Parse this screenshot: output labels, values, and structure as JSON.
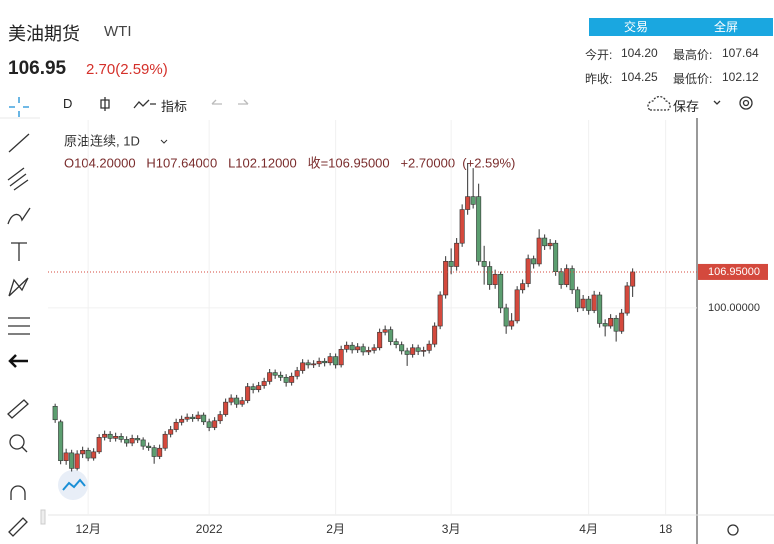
{
  "header": {
    "title": "美油期货",
    "symbol": "WTI",
    "price": "106.95",
    "change": "2.70(2.59%)",
    "buttons": [
      "交易",
      "全屏"
    ],
    "stats": [
      [
        "今开:",
        "104.20"
      ],
      [
        "最高价:",
        "107.64"
      ],
      [
        "昨收:",
        "104.25"
      ],
      [
        "最低价:",
        "102.12"
      ]
    ]
  },
  "toolbar": {
    "interval": "D",
    "indicators": "指标",
    "save": "保存"
  },
  "chart_data": {
    "type": "candlestick",
    "series_name": "原油连续, 1D",
    "ohlc_text": "O104.20000   H107.64000   L102.12000   收=106.95000   +2.70000  (+2.59%)",
    "up_color": "#d4493d",
    "down_color": "#5c9e70",
    "open": [
      81.0,
      78.0,
      70.5,
      72.0,
      69.0,
      71.8,
      72.5,
      71.0,
      72.2,
      75.0,
      75.6,
      74.8,
      75.2,
      74.6,
      73.9,
      74.8,
      74.5,
      73.3,
      73.0,
      71.3,
      72.9,
      75.6,
      76.5,
      77.9,
      78.5,
      78.9,
      78.6,
      79.3,
      78.0,
      76.9,
      78.2,
      79.4,
      81.8,
      82.6,
      81.4,
      82.1,
      84.8,
      84.2,
      85.0,
      85.8,
      87.5,
      87.0,
      86.6,
      85.6,
      86.8,
      87.9,
      89.4,
      89.0,
      89.2,
      89.7,
      89.4,
      90.6,
      89.0,
      92.0,
      92.8,
      91.9,
      92.5,
      91.5,
      91.8,
      92.3,
      95.3,
      95.8,
      93.5,
      92.9,
      91.7,
      91.0,
      92.3,
      91.6,
      91.8,
      93.0,
      96.5,
      102.5,
      109.0,
      108.0,
      112.5,
      119.0,
      121.5,
      121.5,
      109.0,
      108.0,
      104.5,
      106.5,
      100.0,
      96.5,
      97.5,
      103.5,
      104.7,
      109.5,
      108.5,
      113.5,
      112.0,
      112.5,
      107.0,
      104.5,
      107.6,
      103.5,
      100.0,
      101.7,
      99.5,
      102.5,
      97.0,
      96.5,
      98.0,
      95.5,
      99.0,
      104.2
    ],
    "high": [
      81.5,
      78.4,
      72.8,
      72.6,
      72.5,
      73.2,
      73.0,
      72.9,
      75.6,
      76.3,
      76.2,
      75.9,
      75.8,
      75.2,
      75.5,
      75.4,
      75.0,
      74.0,
      73.5,
      73.6,
      76.2,
      77.2,
      78.6,
      79.2,
      79.6,
      79.5,
      80.0,
      79.8,
      78.6,
      78.9,
      80.1,
      82.5,
      83.3,
      83.2,
      82.8,
      85.5,
      85.4,
      85.7,
      86.5,
      88.2,
      88.1,
      87.7,
      87.2,
      87.5,
      88.6,
      90.1,
      90.0,
      89.9,
      90.4,
      90.3,
      91.3,
      91.2,
      92.7,
      93.5,
      93.4,
      93.2,
      93.1,
      92.5,
      93.0,
      96.0,
      96.6,
      96.4,
      94.1,
      93.5,
      92.3,
      93.0,
      92.9,
      92.5,
      93.7,
      97.2,
      103.2,
      110.0,
      111.5,
      113.5,
      120.0,
      128.0,
      127.0,
      124.0,
      112.0,
      109.0,
      107.4,
      107.0,
      100.8,
      99.0,
      104.2,
      105.5,
      110.3,
      110.1,
      115.2,
      114.2,
      113.3,
      113.1,
      107.7,
      108.4,
      108.2,
      104.1,
      102.5,
      102.3,
      103.3,
      103.1,
      97.8,
      98.8,
      98.6,
      99.8,
      105.0,
      107.64
    ],
    "low": [
      77.8,
      69.8,
      69.7,
      68.4,
      68.6,
      71.0,
      70.4,
      70.5,
      71.8,
      74.4,
      74.1,
      74.2,
      74.0,
      73.2,
      73.3,
      73.9,
      72.6,
      72.4,
      69.9,
      70.8,
      72.4,
      75.0,
      76.0,
      77.3,
      78.0,
      78.0,
      78.1,
      77.4,
      76.2,
      76.4,
      77.6,
      79.0,
      81.2,
      80.7,
      80.9,
      81.6,
      83.5,
      83.7,
      84.4,
      85.2,
      86.3,
      85.9,
      84.8,
      85.0,
      86.2,
      87.3,
      88.3,
      88.4,
      88.6,
      88.7,
      88.9,
      88.3,
      88.5,
      91.4,
      91.2,
      91.3,
      90.8,
      90.9,
      91.2,
      91.8,
      94.7,
      92.8,
      92.2,
      91.0,
      88.8,
      90.4,
      90.9,
      90.6,
      91.2,
      92.4,
      95.9,
      101.8,
      106.5,
      107.2,
      111.8,
      118.0,
      119.2,
      108.2,
      104.5,
      103.5,
      103.7,
      99.0,
      95.0,
      95.8,
      97.0,
      102.8,
      104.0,
      107.6,
      108.0,
      111.2,
      111.3,
      106.2,
      103.7,
      104.0,
      102.7,
      99.2,
      99.4,
      98.7,
      99.0,
      96.2,
      94.5,
      96.0,
      93.5,
      95.0,
      98.5,
      102.12
    ],
    "close": [
      78.4,
      70.5,
      72.0,
      69.0,
      71.8,
      72.5,
      71.0,
      72.2,
      75.0,
      75.6,
      74.8,
      75.2,
      74.6,
      73.9,
      74.8,
      74.5,
      73.3,
      73.0,
      71.3,
      72.9,
      75.6,
      76.5,
      77.9,
      78.5,
      78.9,
      78.6,
      79.3,
      78.0,
      76.9,
      78.2,
      79.4,
      81.8,
      82.6,
      81.4,
      82.1,
      84.8,
      84.2,
      85.0,
      85.8,
      87.5,
      87.0,
      86.6,
      85.6,
      86.8,
      87.9,
      89.4,
      89.0,
      89.2,
      89.7,
      89.4,
      90.6,
      89.0,
      92.0,
      92.8,
      91.9,
      92.5,
      91.5,
      91.8,
      92.3,
      95.3,
      95.8,
      93.5,
      92.9,
      91.7,
      91.0,
      92.3,
      91.6,
      91.8,
      93.0,
      96.5,
      102.5,
      109.0,
      108.0,
      112.5,
      119.0,
      121.5,
      120.0,
      109.0,
      108.0,
      104.5,
      106.5,
      100.0,
      96.5,
      97.5,
      103.5,
      104.7,
      109.5,
      108.5,
      113.5,
      112.0,
      112.5,
      107.0,
      104.5,
      107.6,
      103.5,
      100.0,
      101.7,
      99.5,
      102.5,
      97.0,
      96.5,
      98.0,
      95.5,
      99.0,
      104.25,
      106.95
    ],
    "last_price": 106.95,
    "last_price_label": "106.95000",
    "xlim": [
      -1.3,
      116.7
    ],
    "ylim": [
      60,
      136.3
    ],
    "xticks": [
      {
        "value": 6,
        "label": "12月"
      },
      {
        "value": 28,
        "label": "2022"
      },
      {
        "value": 51,
        "label": "2月"
      },
      {
        "value": 72,
        "label": "3月"
      },
      {
        "value": 97,
        "label": "4月"
      },
      {
        "value": 111,
        "label": "18"
      }
    ],
    "yticks": [
      {
        "value": 100,
        "label": "100.00000"
      }
    ],
    "grid": true
  }
}
